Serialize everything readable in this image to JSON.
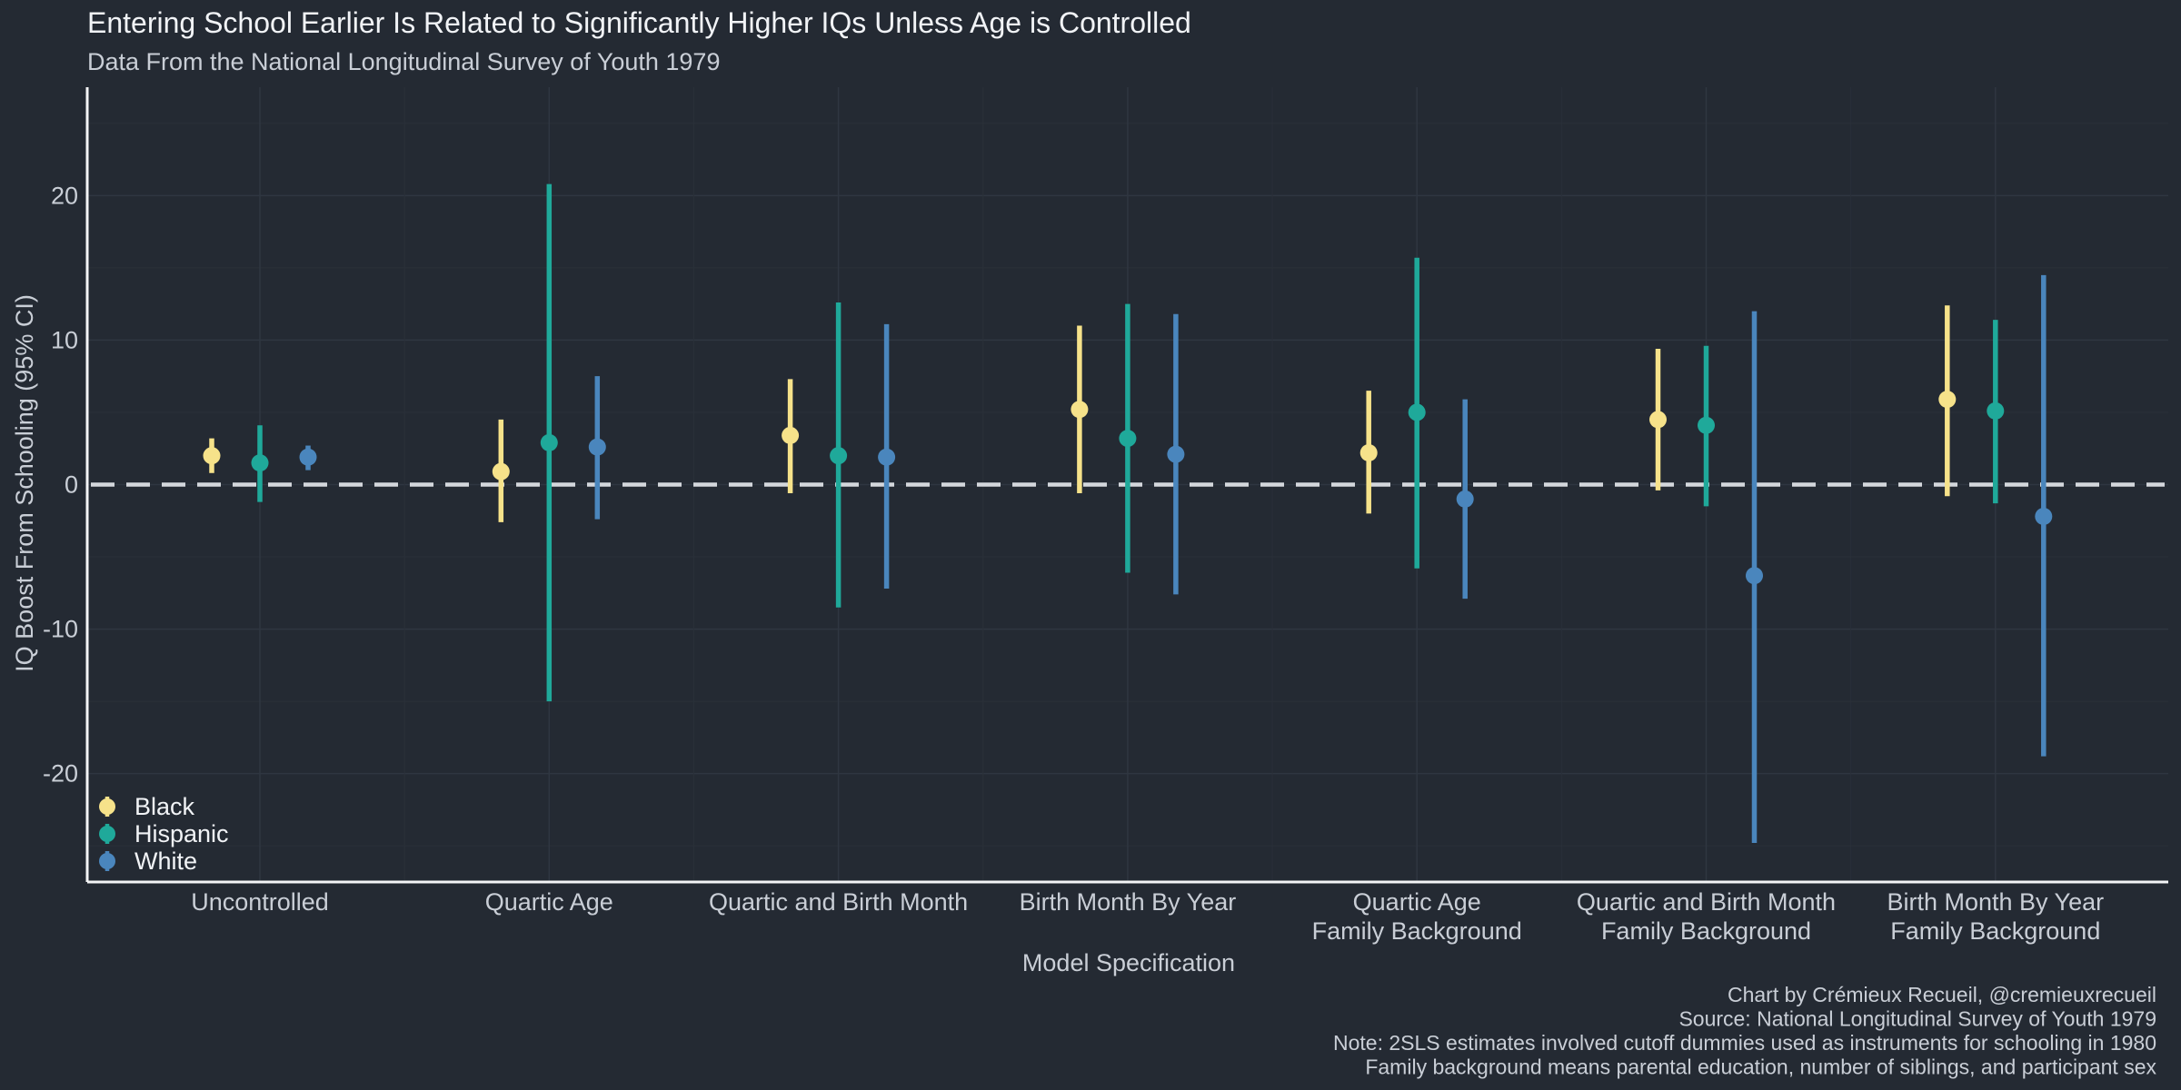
{
  "chart_data": {
    "type": "errorbar",
    "title": "Entering School Earlier Is Related to Significantly Higher IQs Unless Age is Controlled",
    "subtitle": "Data From the National Longitudinal Survey of Youth 1979",
    "xlabel": "Model Specification",
    "ylabel": "IQ Boost From Schooling (95% CI)",
    "ylim": [
      -27.5,
      27.5
    ],
    "yticks": [
      20,
      10,
      0,
      -10,
      -20
    ],
    "ytick_labels": [
      "20",
      "10",
      "0",
      "-10",
      "-20"
    ],
    "reference_line": 0,
    "categories": [
      [
        "Uncontrolled"
      ],
      [
        "Quartic Age"
      ],
      [
        "Quartic and Birth Month"
      ],
      [
        "Birth Month By Year"
      ],
      [
        "Quartic Age",
        "Family Background"
      ],
      [
        "Quartic and Birth Month",
        "Family Background"
      ],
      [
        "Birth Month By Year",
        "Family Background"
      ]
    ],
    "series": [
      {
        "name": "Black",
        "color": "#f6e28a",
        "estimates": [
          2.0,
          0.9,
          3.4,
          5.2,
          2.2,
          4.5,
          5.9
        ],
        "lower": [
          0.8,
          -2.6,
          -0.6,
          -0.6,
          -2.0,
          -0.4,
          -0.8
        ],
        "upper": [
          3.2,
          4.5,
          7.3,
          11.0,
          6.5,
          9.4,
          12.4
        ]
      },
      {
        "name": "Hispanic",
        "color": "#1fa99a",
        "estimates": [
          1.5,
          2.9,
          2.0,
          3.2,
          5.0,
          4.1,
          5.1
        ],
        "lower": [
          -1.2,
          -15.0,
          -8.5,
          -6.1,
          -5.8,
          -1.5,
          -1.3
        ],
        "upper": [
          4.1,
          20.8,
          12.6,
          12.5,
          15.7,
          9.6,
          11.4
        ]
      },
      {
        "name": "White",
        "color": "#4a86bd",
        "estimates": [
          1.9,
          2.6,
          1.9,
          2.1,
          -1.0,
          -6.3,
          -2.2
        ],
        "lower": [
          1.0,
          -2.4,
          -7.2,
          -7.6,
          -7.9,
          -24.8,
          -18.8
        ],
        "upper": [
          2.7,
          7.5,
          11.1,
          11.8,
          5.9,
          12.0,
          14.5
        ]
      }
    ],
    "legend": {
      "position": "bottom-left",
      "items": [
        "Black",
        "Hispanic",
        "White"
      ]
    },
    "caption": [
      "Chart by Crémieux Recueil, @cremieuxrecueil",
      "Source: National Longitudinal Survey of Youth 1979",
      "Note: 2SLS estimates involved cutoff dummies used as instruments for schooling in 1980",
      "Family background means parental education, number of siblings, and participant sex"
    ]
  }
}
